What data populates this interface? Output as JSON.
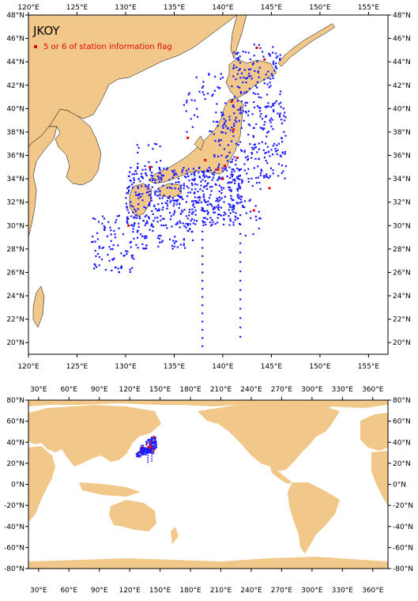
{
  "regional_map": {
    "title": "JKOY",
    "legend_label": "5 or 6 of station information flag",
    "lon_range": [
      120,
      157
    ],
    "lat_range": [
      19,
      48
    ],
    "lon_ticks": [
      "120°E",
      "125°E",
      "130°E",
      "135°E",
      "140°E",
      "145°E",
      "150°E",
      "155°E"
    ],
    "lat_ticks": [
      "20°N",
      "22°N",
      "24°N",
      "26°N",
      "28°N",
      "30°N",
      "32°N",
      "34°N",
      "36°N",
      "38°N",
      "40°N",
      "42°N",
      "44°N",
      "46°N",
      "48°N"
    ]
  },
  "world_map": {
    "lon_ticks": [
      "30°E",
      "60°E",
      "90°E",
      "120°E",
      "150°E",
      "180°E",
      "210°E",
      "240°E",
      "270°E",
      "300°E",
      "330°E",
      "360°E"
    ],
    "lat_ticks": [
      "80°N",
      "60°N",
      "40°N",
      "20°N",
      "0°N",
      "-20°N",
      "-40°N",
      "-60°N",
      "-80°N"
    ]
  },
  "colors": {
    "land": "#f2c88a",
    "station": "#1a1aff",
    "flagged_station": "#e00000"
  }
}
